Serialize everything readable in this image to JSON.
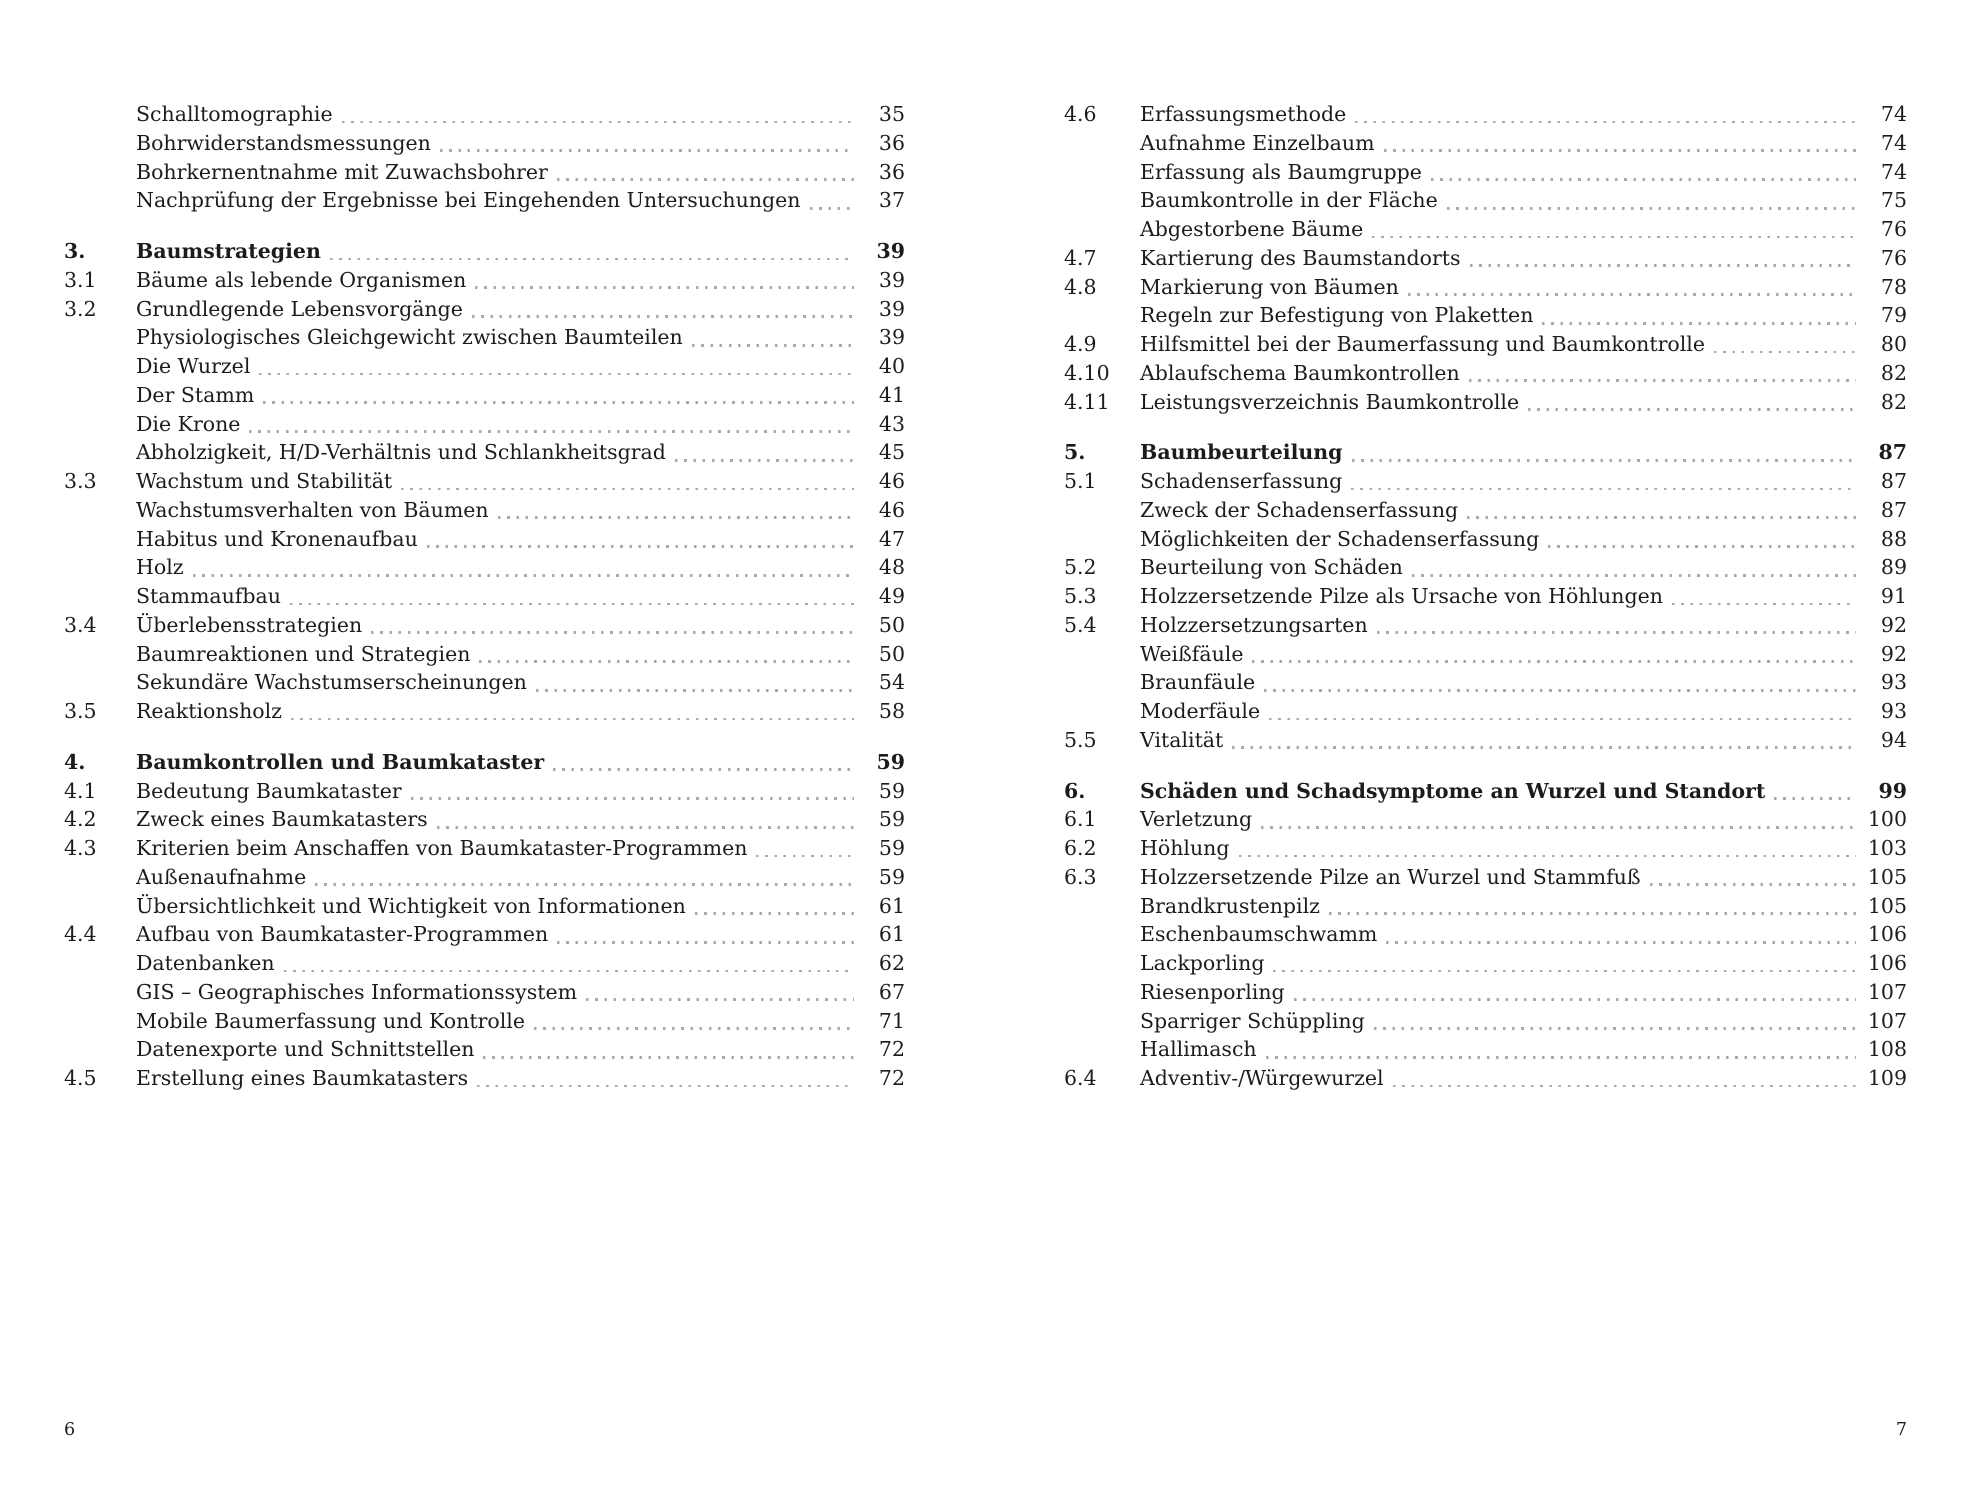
{
  "document": {
    "type": "table-of-contents-spread",
    "language": "de",
    "text_color": "#1c1c1c",
    "leader_dot_color": "#a9a9a9",
    "background_color": "#ffffff"
  },
  "pages": [
    {
      "folio": "6",
      "groups": [
        {
          "rows": [
            {
              "num": "",
              "title": "Schalltomographie",
              "page": "35",
              "bold": false
            },
            {
              "num": "",
              "title": "Bohrwiderstandsmessungen",
              "page": "36",
              "bold": false
            },
            {
              "num": "",
              "title": "Bohrkernentnahme mit Zuwachsbohrer",
              "page": "36",
              "bold": false
            },
            {
              "num": "",
              "title": "Nachprüfung der Ergebnisse bei Eingehenden Untersuchungen",
              "page": "37",
              "bold": false
            }
          ]
        },
        {
          "rows": [
            {
              "num": "3.",
              "title": "Baumstrategien",
              "page": "39",
              "bold": true
            },
            {
              "num": "3.1",
              "title": "Bäume als lebende Organismen",
              "page": "39",
              "bold": false
            },
            {
              "num": "3.2",
              "title": "Grundlegende Lebensvorgänge",
              "page": "39",
              "bold": false
            },
            {
              "num": "",
              "title": "Physiologisches Gleichgewicht zwischen Baumteilen",
              "page": "39",
              "bold": false
            },
            {
              "num": "",
              "title": "Die Wurzel",
              "page": "40",
              "bold": false
            },
            {
              "num": "",
              "title": "Der Stamm",
              "page": "41",
              "bold": false
            },
            {
              "num": "",
              "title": "Die Krone",
              "page": "43",
              "bold": false
            },
            {
              "num": "",
              "title": "Abholzigkeit, H/D-Verhältnis und Schlankheitsgrad",
              "page": "45",
              "bold": false
            },
            {
              "num": "3.3",
              "title": "Wachstum und Stabilität",
              "page": "46",
              "bold": false
            },
            {
              "num": "",
              "title": "Wachstumsverhalten von Bäumen",
              "page": "46",
              "bold": false
            },
            {
              "num": "",
              "title": "Habitus und Kronenaufbau",
              "page": "47",
              "bold": false
            },
            {
              "num": "",
              "title": "Holz",
              "page": "48",
              "bold": false
            },
            {
              "num": "",
              "title": "Stammaufbau",
              "page": "49",
              "bold": false
            },
            {
              "num": "3.4",
              "title": "Überlebensstrategien",
              "page": "50",
              "bold": false
            },
            {
              "num": "",
              "title": "Baumreaktionen und Strategien",
              "page": "50",
              "bold": false
            },
            {
              "num": "",
              "title": "Sekundäre Wachstumserscheinungen",
              "page": "54",
              "bold": false
            },
            {
              "num": "3.5",
              "title": "Reaktionsholz",
              "page": "58",
              "bold": false
            }
          ]
        },
        {
          "rows": [
            {
              "num": "4.",
              "title": "Baumkontrollen und Baumkataster",
              "page": "59",
              "bold": true
            },
            {
              "num": "4.1",
              "title": "Bedeutung Baumkataster",
              "page": "59",
              "bold": false
            },
            {
              "num": "4.2",
              "title": "Zweck eines Baumkatasters",
              "page": "59",
              "bold": false
            },
            {
              "num": "4.3",
              "title": "Kriterien beim Anschaffen von Baumkataster-Programmen",
              "page": "59",
              "bold": false
            },
            {
              "num": "",
              "title": "Außenaufnahme",
              "page": "59",
              "bold": false
            },
            {
              "num": "",
              "title": "Übersichtlichkeit und Wichtigkeit von Informationen",
              "page": "61",
              "bold": false
            },
            {
              "num": "4.4",
              "title": "Aufbau von Baumkataster-Programmen",
              "page": "61",
              "bold": false
            },
            {
              "num": "",
              "title": "Datenbanken",
              "page": "62",
              "bold": false
            },
            {
              "num": "",
              "title": "GIS – Geographisches Informationssystem",
              "page": "67",
              "bold": false
            },
            {
              "num": "",
              "title": "Mobile Baumerfassung und Kontrolle",
              "page": "71",
              "bold": false
            },
            {
              "num": "",
              "title": "Datenexporte und Schnittstellen",
              "page": "72",
              "bold": false
            },
            {
              "num": "4.5",
              "title": "Erstellung eines Baumkatasters",
              "page": "72",
              "bold": false
            }
          ]
        }
      ]
    },
    {
      "folio": "7",
      "groups": [
        {
          "rows": [
            {
              "num": "4.6",
              "title": "Erfassungsmethode",
              "page": "74",
              "bold": false
            },
            {
              "num": "",
              "title": "Aufnahme Einzelbaum",
              "page": "74",
              "bold": false
            },
            {
              "num": "",
              "title": "Erfassung als Baumgruppe",
              "page": "74",
              "bold": false
            },
            {
              "num": "",
              "title": "Baumkontrolle in der Fläche",
              "page": "75",
              "bold": false
            },
            {
              "num": "",
              "title": "Abgestorbene Bäume",
              "page": "76",
              "bold": false
            },
            {
              "num": "4.7",
              "title": "Kartierung des Baumstandorts",
              "page": "76",
              "bold": false
            },
            {
              "num": "4.8",
              "title": "Markierung von Bäumen",
              "page": "78",
              "bold": false
            },
            {
              "num": "",
              "title": "Regeln zur Befestigung von Plaketten",
              "page": "79",
              "bold": false
            },
            {
              "num": "4.9",
              "title": "Hilfsmittel bei der Baumerfassung und Baumkontrolle",
              "page": "80",
              "bold": false
            },
            {
              "num": "4.10",
              "title": "Ablaufschema Baumkontrollen",
              "page": "82",
              "bold": false
            },
            {
              "num": "4.11",
              "title": "Leistungsverzeichnis Baumkontrolle",
              "page": "82",
              "bold": false
            }
          ]
        },
        {
          "rows": [
            {
              "num": "5.",
              "title": "Baumbeurteilung",
              "page": "87",
              "bold": true
            },
            {
              "num": "5.1",
              "title": "Schadenserfassung",
              "page": "87",
              "bold": false
            },
            {
              "num": "",
              "title": "Zweck der Schadenserfassung",
              "page": "87",
              "bold": false
            },
            {
              "num": "",
              "title": "Möglichkeiten der Schadenserfassung",
              "page": "88",
              "bold": false
            },
            {
              "num": "5.2",
              "title": "Beurteilung von Schäden",
              "page": "89",
              "bold": false
            },
            {
              "num": "5.3",
              "title": "Holzzersetzende Pilze als Ursache von Höhlungen",
              "page": "91",
              "bold": false
            },
            {
              "num": "5.4",
              "title": "Holzzersetzungsarten",
              "page": "92",
              "bold": false
            },
            {
              "num": "",
              "title": "Weißfäule",
              "page": "92",
              "bold": false
            },
            {
              "num": "",
              "title": "Braunfäule",
              "page": "93",
              "bold": false
            },
            {
              "num": "",
              "title": "Moderfäule",
              "page": "93",
              "bold": false
            },
            {
              "num": "5.5",
              "title": "Vitalität",
              "page": "94",
              "bold": false
            }
          ]
        },
        {
          "rows": [
            {
              "num": "6.",
              "title": "Schäden und Schadsymptome an Wurzel und Standort",
              "page": "99",
              "bold": true
            },
            {
              "num": "6.1",
              "title": "Verletzung",
              "page": "100",
              "bold": false
            },
            {
              "num": "6.2",
              "title": "Höhlung",
              "page": "103",
              "bold": false
            },
            {
              "num": "6.3",
              "title": "Holzzersetzende Pilze an Wurzel und Stammfuß",
              "page": "105",
              "bold": false
            },
            {
              "num": "",
              "title": "Brandkrustenpilz",
              "page": "105",
              "bold": false
            },
            {
              "num": "",
              "title": "Eschenbaumschwamm",
              "page": "106",
              "bold": false
            },
            {
              "num": "",
              "title": "Lackporling",
              "page": "106",
              "bold": false
            },
            {
              "num": "",
              "title": "Riesenporling",
              "page": "107",
              "bold": false
            },
            {
              "num": "",
              "title": "Sparriger Schüppling",
              "page": "107",
              "bold": false
            },
            {
              "num": "",
              "title": "Hallimasch",
              "page": "108",
              "bold": false
            },
            {
              "num": "6.4",
              "title": "Adventiv-/Würgewurzel",
              "page": "109",
              "bold": false
            }
          ]
        }
      ]
    }
  ]
}
